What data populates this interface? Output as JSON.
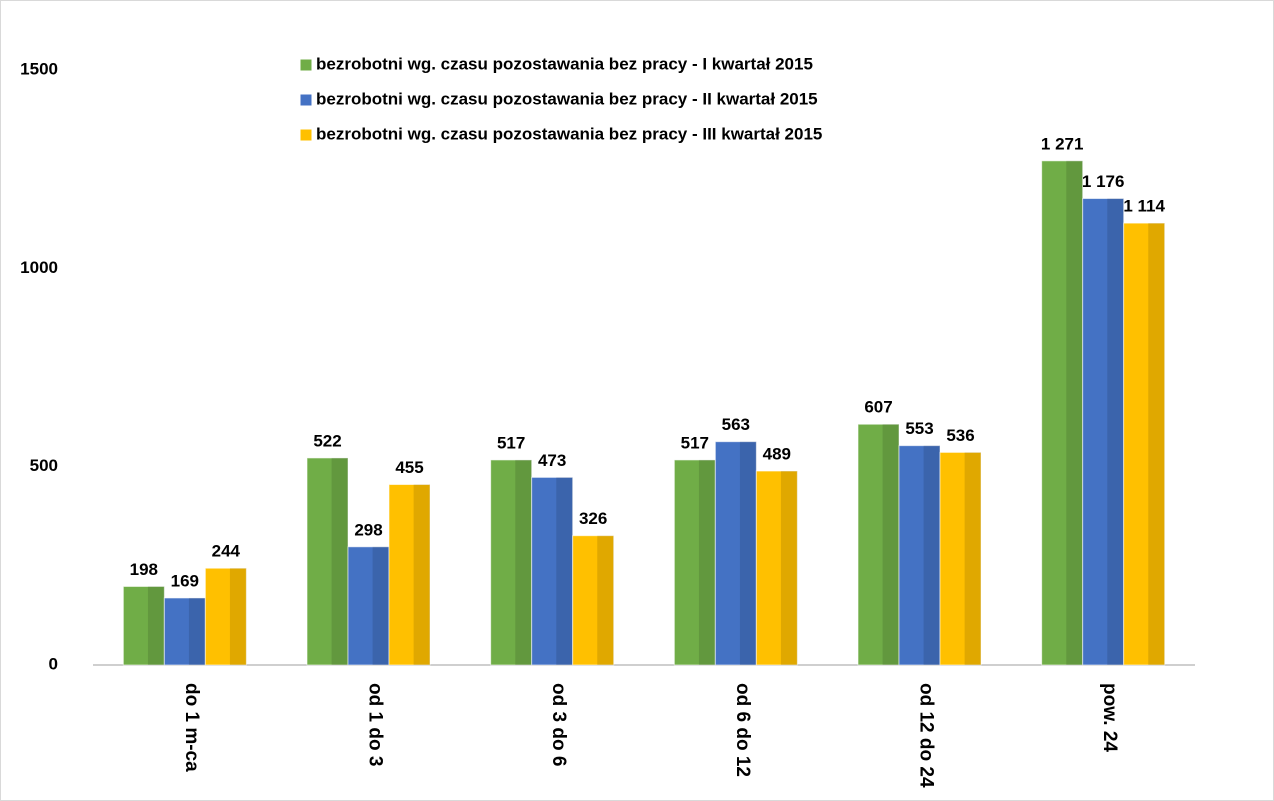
{
  "chart_data": {
    "type": "bar",
    "categories": [
      "do 1 m-ca",
      "od 1 do 3",
      "od 3 do 6",
      "od 6 do 12",
      "od 12 do 24",
      "pow. 24"
    ],
    "series": [
      {
        "name": "bezrobotni wg. czasu pozostawania bez pracy - I kwartał 2015",
        "color": "#70ad47",
        "values": [
          198,
          522,
          517,
          517,
          607,
          1271
        ],
        "value_labels": [
          "198",
          "522",
          "517",
          "517",
          "607",
          "1 271"
        ]
      },
      {
        "name": "bezrobotni wg. czasu pozostawania bez pracy - II kwartał 2015",
        "color": "#4472c4",
        "values": [
          169,
          298,
          473,
          563,
          553,
          1176
        ],
        "value_labels": [
          "169",
          "298",
          "473",
          "563",
          "553",
          "1 176"
        ]
      },
      {
        "name": "bezrobotni wg. czasu pozostawania bez pracy - III kwartał 2015",
        "color": "#ffc000",
        "values": [
          244,
          455,
          326,
          489,
          536,
          1114
        ],
        "value_labels": [
          "244",
          "455",
          "326",
          "489",
          "536",
          "1 114"
        ]
      }
    ],
    "ylim": [
      0,
      1500
    ],
    "yticks": [
      0,
      500,
      1000,
      1500
    ],
    "grid": false,
    "legend": "top"
  }
}
